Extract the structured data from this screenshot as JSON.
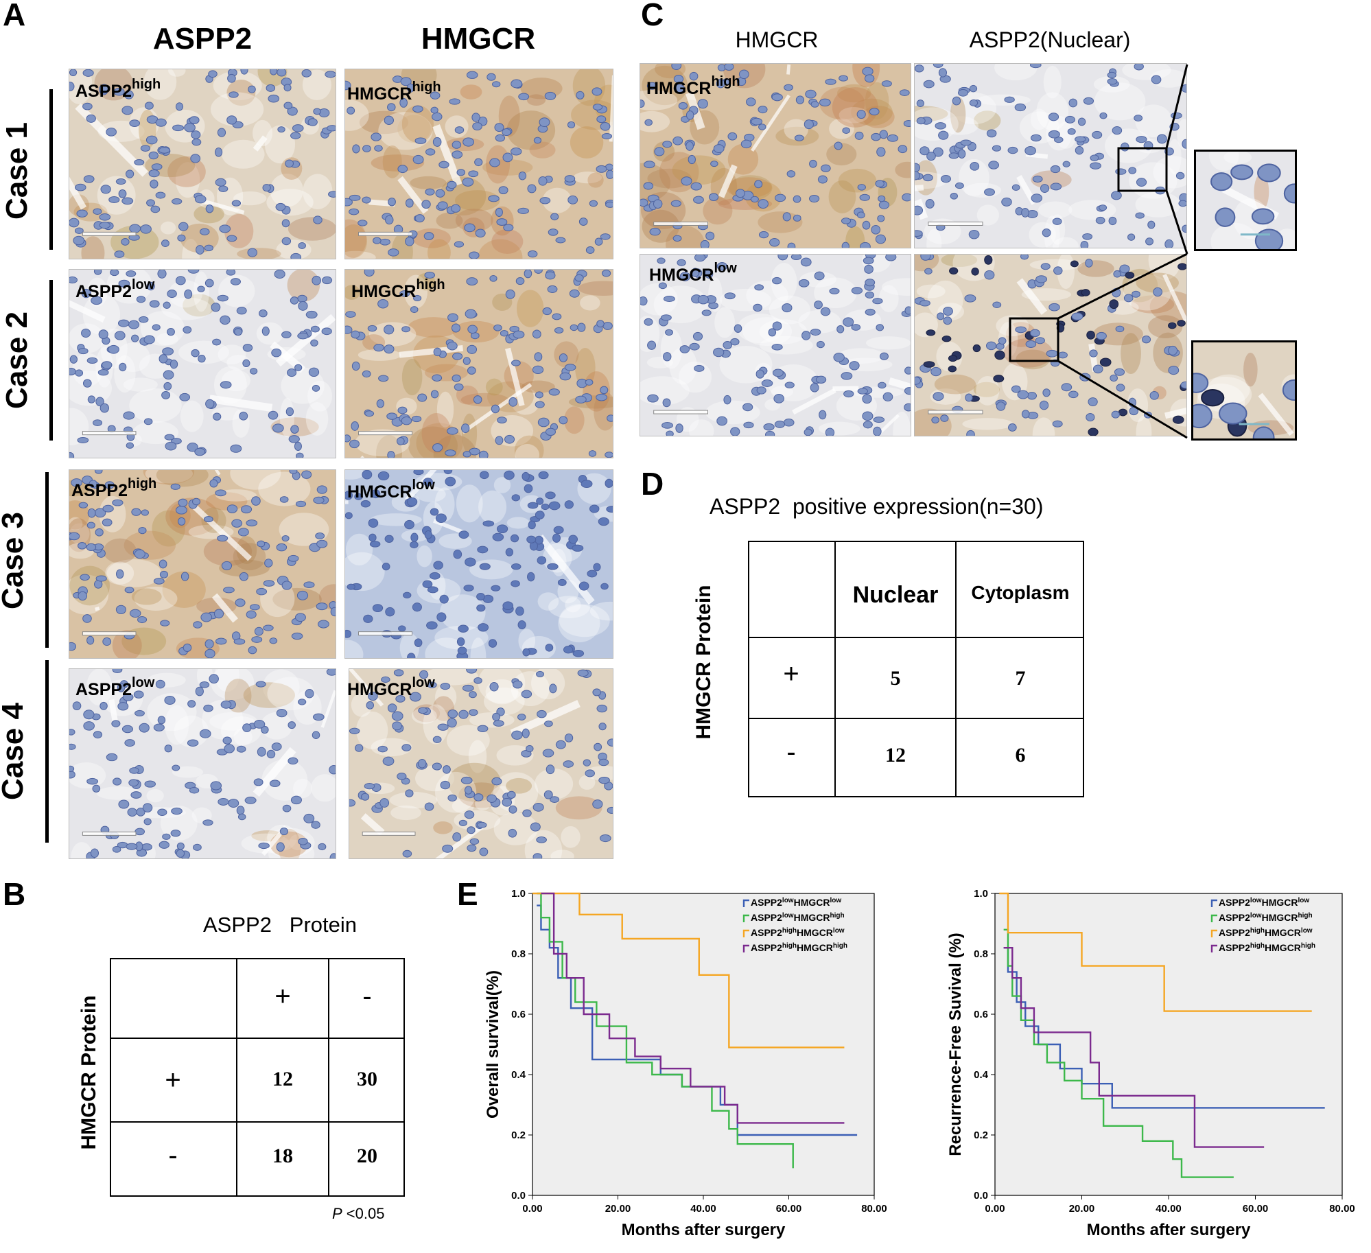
{
  "panels": {
    "A": "A",
    "B": "B",
    "C": "C",
    "D": "D",
    "E": "E"
  },
  "panelA": {
    "col_headers": [
      "ASPP2",
      "HMGCR"
    ],
    "cases": [
      {
        "label": "Case 1",
        "left_tag": {
          "base": "ASPP2",
          "sup": "high"
        },
        "right_tag": {
          "base": "HMGCR",
          "sup": "high"
        }
      },
      {
        "label": "Case 2",
        "left_tag": {
          "base": "ASPP2",
          "sup": "low"
        },
        "right_tag": {
          "base": "HMGCR",
          "sup": "high"
        }
      },
      {
        "label": "Case 3",
        "left_tag": {
          "base": "ASPP2",
          "sup": "high"
        },
        "right_tag": {
          "base": "HMGCR",
          "sup": "low"
        }
      },
      {
        "label": "Case 4",
        "left_tag": {
          "base": "ASPP2",
          "sup": "low"
        },
        "right_tag": {
          "base": "HMGCR",
          "sup": "low"
        }
      }
    ]
  },
  "panelC": {
    "col_headers": [
      "HMGCR",
      "ASPP2(Nuclear)"
    ],
    "rows": [
      {
        "tag": {
          "base": "HMGCR",
          "sup": "high"
        }
      },
      {
        "tag": {
          "base": "HMGCR",
          "sup": "low"
        }
      }
    ]
  },
  "panelB": {
    "col_title": "ASPP2   Protein",
    "row_title": "HMGCR Protein",
    "col_signs": [
      "+",
      "-"
    ],
    "row_signs": [
      "+",
      "-"
    ],
    "cells": [
      [
        "12",
        "30"
      ],
      [
        "18",
        "20"
      ]
    ],
    "pvalue_label": "P",
    "pvalue_text": " <0.05"
  },
  "panelD": {
    "title": "ASPP2  positive expression(n=30)",
    "row_title": "HMGCR Protein",
    "col_headers": [
      "Nuclear",
      "Cytoplasm"
    ],
    "row_signs": [
      "+",
      "-"
    ],
    "cells": [
      [
        "5",
        "7"
      ],
      [
        "12",
        "6"
      ]
    ]
  },
  "colors": {
    "blue": "#3b5fb5",
    "green": "#3cb84a",
    "orange": "#f5a623",
    "purple": "#7b2a8e",
    "plot_bg": "#eeeeee"
  },
  "chart_data": [
    {
      "type": "line",
      "subtype": "kaplan-meier step",
      "xlabel": "Months after surgery",
      "ylabel": "Overall survival(%)",
      "xlim": [
        0,
        80
      ],
      "ylim": [
        0,
        1.0
      ],
      "xticks": [
        "0.00",
        "20.00",
        "40.00",
        "60.00",
        "80.00"
      ],
      "yticks": [
        "0.0",
        "0.2",
        "0.4",
        "0.6",
        "0.8",
        "1.0"
      ],
      "legend_position": "top-right",
      "series": [
        {
          "name": "ASPP2lowHMGCRlow",
          "legend": {
            "a": "ASPP2",
            "s1": "low",
            "b": "HMGCR",
            "s2": "low"
          },
          "color": "#3b5fb5",
          "x": [
            1,
            2,
            4,
            6,
            9,
            14,
            20,
            30,
            35,
            44,
            48,
            76
          ],
          "y": [
            0.96,
            0.88,
            0.82,
            0.72,
            0.62,
            0.45,
            0.45,
            0.4,
            0.36,
            0.3,
            0.2,
            0.2
          ]
        },
        {
          "name": "ASPP2lowHMGCRhigh",
          "legend": {
            "a": "ASPP2",
            "s1": "low",
            "b": "HMGCR",
            "s2": "high"
          },
          "color": "#3cb84a",
          "x": [
            1,
            2,
            4,
            7,
            10,
            15,
            22,
            28,
            35,
            42,
            46,
            48,
            61
          ],
          "y": [
            1.0,
            0.92,
            0.84,
            0.72,
            0.64,
            0.56,
            0.44,
            0.4,
            0.36,
            0.28,
            0.22,
            0.17,
            0.09
          ]
        },
        {
          "name": "ASPP2highHMGCRlow",
          "legend": {
            "a": "ASPP2",
            "s1": "high",
            "b": "HMGCR",
            "s2": "low"
          },
          "color": "#f5a623",
          "x": [
            0,
            11,
            21,
            39,
            46,
            73
          ],
          "y": [
            1.0,
            0.93,
            0.85,
            0.73,
            0.49,
            0.49
          ]
        },
        {
          "name": "ASPP2highHMGCRhigh",
          "legend": {
            "a": "ASPP2",
            "s1": "high",
            "b": "HMGCR",
            "s2": "high"
          },
          "color": "#7b2a8e",
          "x": [
            2,
            5,
            8,
            12,
            18,
            24,
            30,
            37,
            45,
            48,
            73
          ],
          "y": [
            1.0,
            0.8,
            0.72,
            0.6,
            0.52,
            0.46,
            0.42,
            0.36,
            0.3,
            0.24,
            0.24
          ]
        }
      ]
    },
    {
      "type": "line",
      "subtype": "kaplan-meier step",
      "xlabel": "Months after surgery",
      "ylabel": "Recurrence-Free Suvival (%)",
      "xlim": [
        0,
        80
      ],
      "ylim": [
        0,
        1.0
      ],
      "xticks": [
        "0.00",
        "20.00",
        "40.00",
        "60.00",
        "80.00"
      ],
      "yticks": [
        "0.0",
        "0.2",
        "0.4",
        "0.6",
        "0.8",
        "1.0"
      ],
      "legend_position": "top-right",
      "series": [
        {
          "name": "ASPP2lowHMGCRlow",
          "legend": {
            "a": "ASPP2",
            "s1": "low",
            "b": "HMGCR",
            "s2": "low"
          },
          "color": "#3b5fb5",
          "x": [
            2,
            3,
            5,
            7,
            10,
            15,
            20,
            27,
            76
          ],
          "y": [
            0.82,
            0.74,
            0.64,
            0.56,
            0.5,
            0.42,
            0.37,
            0.29,
            0.29
          ]
        },
        {
          "name": "ASPP2lowHMGCRhigh",
          "legend": {
            "a": "ASPP2",
            "s1": "low",
            "b": "HMGCR",
            "s2": "high"
          },
          "color": "#3cb84a",
          "x": [
            2,
            3,
            4,
            6,
            9,
            12,
            16,
            20,
            25,
            34,
            41,
            43,
            55
          ],
          "y": [
            0.88,
            0.76,
            0.66,
            0.58,
            0.5,
            0.44,
            0.38,
            0.32,
            0.23,
            0.18,
            0.12,
            0.06,
            0.06
          ]
        },
        {
          "name": "ASPP2highHMGCRlow",
          "legend": {
            "a": "ASPP2",
            "s1": "high",
            "b": "HMGCR",
            "s2": "low"
          },
          "color": "#f5a623",
          "x": [
            1,
            3,
            20,
            39,
            73
          ],
          "y": [
            1.0,
            0.87,
            0.76,
            0.61,
            0.61
          ]
        },
        {
          "name": "ASPP2highHMGCRhigh",
          "legend": {
            "a": "ASPP2",
            "s1": "high",
            "b": "HMGCR",
            "s2": "high"
          },
          "color": "#7b2a8e",
          "x": [
            2,
            4,
            6,
            9,
            17,
            22,
            24,
            38,
            46,
            62
          ],
          "y": [
            0.82,
            0.72,
            0.62,
            0.54,
            0.54,
            0.44,
            0.33,
            0.33,
            0.16,
            0.16
          ]
        }
      ]
    }
  ]
}
